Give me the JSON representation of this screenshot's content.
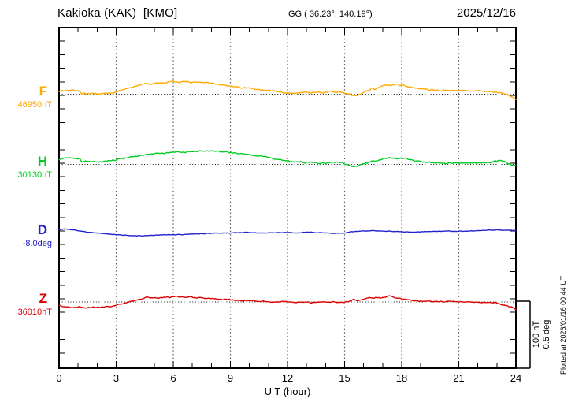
{
  "header": {
    "title": "Kakioka (KAK)  [KMO]",
    "coords": "GG ( 36.23°, 140.19°)",
    "date": "2025/12/16"
  },
  "footer": {
    "xlabel": "U T (hour)",
    "plotted_at": "Plotted at 2026/01/16 00:44 UT"
  },
  "scale_bar": {
    "line1": "100 nT",
    "line2": "0.5 deg"
  },
  "chart_data": {
    "type": "line",
    "title": "Kakioka (KAK) [KMO]",
    "subtitle": "GG ( 36.23°, 140.19°)",
    "date": "2025/12/16",
    "xlabel": "U T (hour)",
    "x_range": [
      0,
      24
    ],
    "x_ticks": [
      0,
      3,
      6,
      9,
      12,
      15,
      18,
      21,
      24
    ],
    "grid": "dotted vertical lines every 3 h; dotted horizontal baseline per channel",
    "scale": {
      "nT_per_division": 100,
      "deg_per_division": 0.5
    },
    "series": [
      {
        "name": "F",
        "unit": "nT",
        "baseline_value": 46950,
        "baseline_label": "46950nT",
        "color": "#FFAA00",
        "noise_amp": 1.3,
        "points": [
          [
            0,
            4.5
          ],
          [
            0.2,
            5
          ],
          [
            0.4,
            6
          ],
          [
            0.55,
            5
          ],
          [
            0.7,
            6
          ],
          [
            0.85,
            5
          ],
          [
            1.0,
            5
          ],
          [
            1.1,
            4
          ],
          [
            1.2,
            0
          ],
          [
            1.3,
            2
          ],
          [
            1.5,
            1
          ],
          [
            1.8,
            1
          ],
          [
            2.1,
            0.5
          ],
          [
            2.4,
            1
          ],
          [
            2.7,
            1.5
          ],
          [
            3.0,
            3
          ],
          [
            3.3,
            6
          ],
          [
            3.6,
            9
          ],
          [
            3.9,
            11
          ],
          [
            4.2,
            13
          ],
          [
            4.5,
            16
          ],
          [
            4.8,
            15
          ],
          [
            5.1,
            17
          ],
          [
            5.4,
            16
          ],
          [
            5.7,
            18
          ],
          [
            6.0,
            19
          ],
          [
            6.3,
            18
          ],
          [
            6.6,
            19
          ],
          [
            6.9,
            17
          ],
          [
            7.2,
            18
          ],
          [
            7.5,
            17
          ],
          [
            7.8,
            17
          ],
          [
            8.1,
            16
          ],
          [
            8.4,
            14
          ],
          [
            8.7,
            13
          ],
          [
            9.0,
            12
          ],
          [
            9.3,
            11
          ],
          [
            9.6,
            10
          ],
          [
            10.0,
            9
          ],
          [
            10.4,
            7
          ],
          [
            10.8,
            6
          ],
          [
            11.2,
            5
          ],
          [
            11.6,
            3
          ],
          [
            12.0,
            2
          ],
          [
            12.3,
            1
          ],
          [
            12.6,
            2
          ],
          [
            12.9,
            3
          ],
          [
            13.2,
            2
          ],
          [
            13.5,
            3
          ],
          [
            13.8,
            2
          ],
          [
            14.1,
            4
          ],
          [
            14.3,
            5
          ],
          [
            14.5,
            2
          ],
          [
            14.7,
            4
          ],
          [
            14.9,
            2
          ],
          [
            15.1,
            1
          ],
          [
            15.3,
            -1
          ],
          [
            15.5,
            -2
          ],
          [
            15.7,
            -1
          ],
          [
            15.9,
            1
          ],
          [
            16.1,
            4
          ],
          [
            16.3,
            6
          ],
          [
            16.45,
            9
          ],
          [
            16.6,
            7
          ],
          [
            16.8,
            10
          ],
          [
            17.0,
            12
          ],
          [
            17.2,
            14
          ],
          [
            17.35,
            12
          ],
          [
            17.5,
            14
          ],
          [
            17.7,
            15
          ],
          [
            17.9,
            13
          ],
          [
            18.1,
            13
          ],
          [
            18.4,
            11
          ],
          [
            18.7,
            9
          ],
          [
            19.0,
            8
          ],
          [
            19.4,
            7
          ],
          [
            19.8,
            6
          ],
          [
            20.2,
            5
          ],
          [
            20.6,
            6
          ],
          [
            21.0,
            6
          ],
          [
            21.4,
            5
          ],
          [
            21.8,
            5
          ],
          [
            22.2,
            5
          ],
          [
            22.6,
            4
          ],
          [
            23.0,
            3
          ],
          [
            23.3,
            2
          ],
          [
            23.5,
            0
          ],
          [
            23.7,
            -3
          ],
          [
            23.85,
            -5
          ],
          [
            24,
            -7
          ]
        ]
      },
      {
        "name": "H",
        "unit": "nT",
        "baseline_value": 30130,
        "baseline_label": "30130nT",
        "color": "#00CC22",
        "noise_amp": 1.3,
        "points": [
          [
            0,
            7
          ],
          [
            0.2,
            8
          ],
          [
            0.4,
            9
          ],
          [
            0.6,
            10
          ],
          [
            0.8,
            9
          ],
          [
            1.0,
            8
          ],
          [
            1.1,
            9
          ],
          [
            1.2,
            4
          ],
          [
            1.4,
            5
          ],
          [
            1.7,
            4
          ],
          [
            2.0,
            4
          ],
          [
            2.3,
            4
          ],
          [
            2.6,
            5
          ],
          [
            2.9,
            6
          ],
          [
            3.2,
            8
          ],
          [
            3.5,
            9
          ],
          [
            3.8,
            11
          ],
          [
            4.1,
            12
          ],
          [
            4.4,
            14
          ],
          [
            4.7,
            15
          ],
          [
            5.0,
            16
          ],
          [
            5.3,
            16
          ],
          [
            5.6,
            17
          ],
          [
            5.9,
            18
          ],
          [
            6.2,
            19
          ],
          [
            6.5,
            18
          ],
          [
            6.8,
            19
          ],
          [
            7.1,
            19
          ],
          [
            7.4,
            20
          ],
          [
            7.7,
            19
          ],
          [
            8.0,
            20
          ],
          [
            8.3,
            19
          ],
          [
            8.6,
            19
          ],
          [
            8.9,
            18
          ],
          [
            9.2,
            17
          ],
          [
            9.5,
            16
          ],
          [
            9.8,
            15
          ],
          [
            10.1,
            14
          ],
          [
            10.4,
            13
          ],
          [
            10.7,
            12
          ],
          [
            11.0,
            10
          ],
          [
            11.3,
            8
          ],
          [
            11.6,
            7
          ],
          [
            12.0,
            5
          ],
          [
            12.4,
            4
          ],
          [
            12.8,
            3
          ],
          [
            13.2,
            3
          ],
          [
            13.6,
            2
          ],
          [
            14.0,
            2
          ],
          [
            14.4,
            3
          ],
          [
            14.8,
            2
          ],
          [
            15.1,
            0
          ],
          [
            15.3,
            -2
          ],
          [
            15.5,
            -3
          ],
          [
            15.7,
            -2
          ],
          [
            16.0,
            1
          ],
          [
            16.3,
            3
          ],
          [
            16.5,
            6
          ],
          [
            16.7,
            5
          ],
          [
            17.0,
            8
          ],
          [
            17.3,
            10
          ],
          [
            17.5,
            9
          ],
          [
            17.8,
            8
          ],
          [
            18.0,
            10
          ],
          [
            18.3,
            8
          ],
          [
            18.6,
            6
          ],
          [
            19.0,
            4
          ],
          [
            19.4,
            3
          ],
          [
            19.8,
            2
          ],
          [
            20.2,
            2
          ],
          [
            20.6,
            2
          ],
          [
            21.0,
            2
          ],
          [
            21.4,
            2
          ],
          [
            21.8,
            2
          ],
          [
            22.2,
            2
          ],
          [
            22.6,
            3
          ],
          [
            23.0,
            5
          ],
          [
            23.2,
            6
          ],
          [
            23.4,
            4
          ],
          [
            23.6,
            1
          ],
          [
            23.8,
            0
          ],
          [
            24,
            -1.5
          ]
        ]
      },
      {
        "name": "D",
        "unit": "deg",
        "baseline_value": -8.0,
        "baseline_label": "-8.0deg",
        "color": "#2222CC",
        "noise_amp": 0.003,
        "points": [
          [
            0,
            0.023
          ],
          [
            0.3,
            0.029
          ],
          [
            0.6,
            0.026
          ],
          [
            1.0,
            0.017
          ],
          [
            1.5,
            0.006
          ],
          [
            2.0,
            0.0
          ],
          [
            2.5,
            -0.006
          ],
          [
            3.0,
            -0.012
          ],
          [
            3.5,
            -0.017
          ],
          [
            4.0,
            -0.02
          ],
          [
            4.5,
            -0.02
          ],
          [
            5.0,
            -0.017
          ],
          [
            5.5,
            -0.014
          ],
          [
            6.0,
            -0.012
          ],
          [
            6.5,
            -0.012
          ],
          [
            7.0,
            -0.009
          ],
          [
            7.5,
            -0.006
          ],
          [
            8.0,
            -0.003
          ],
          [
            8.5,
            0.0
          ],
          [
            9.0,
            0.0
          ],
          [
            9.5,
            0.003
          ],
          [
            10.0,
            0.003
          ],
          [
            10.5,
            0.0
          ],
          [
            11.0,
            0.0
          ],
          [
            11.5,
            0.003
          ],
          [
            12.0,
            0.003
          ],
          [
            12.5,
            0.0
          ],
          [
            13.0,
            0.006
          ],
          [
            13.5,
            0.003
          ],
          [
            14.0,
            0.0
          ],
          [
            14.5,
            -0.003
          ],
          [
            15.0,
            0.0
          ],
          [
            15.5,
            0.012
          ],
          [
            16.0,
            0.014
          ],
          [
            16.5,
            0.017
          ],
          [
            17.0,
            0.014
          ],
          [
            17.5,
            0.012
          ],
          [
            18.0,
            0.009
          ],
          [
            18.5,
            0.006
          ],
          [
            19.0,
            0.009
          ],
          [
            19.5,
            0.012
          ],
          [
            20.0,
            0.012
          ],
          [
            20.5,
            0.014
          ],
          [
            21.0,
            0.012
          ],
          [
            21.5,
            0.014
          ],
          [
            22.0,
            0.017
          ],
          [
            22.5,
            0.02
          ],
          [
            23.0,
            0.023
          ],
          [
            23.5,
            0.02
          ],
          [
            24,
            0.017
          ]
        ]
      },
      {
        "name": "Z",
        "unit": "nT",
        "baseline_value": 36010,
        "baseline_label": "36010nT",
        "color": "#DD0000",
        "noise_amp": 1.1,
        "points": [
          [
            0,
            -5
          ],
          [
            0.3,
            -7
          ],
          [
            0.6,
            -8
          ],
          [
            0.9,
            -9
          ],
          [
            1.1,
            -7
          ],
          [
            1.3,
            -9
          ],
          [
            1.6,
            -8
          ],
          [
            1.9,
            -8
          ],
          [
            2.2,
            -8
          ],
          [
            2.5,
            -7
          ],
          [
            2.8,
            -6
          ],
          [
            3.1,
            -4
          ],
          [
            3.4,
            -2
          ],
          [
            3.7,
            0
          ],
          [
            4.0,
            2
          ],
          [
            4.3,
            4
          ],
          [
            4.6,
            7
          ],
          [
            4.9,
            6
          ],
          [
            5.2,
            6
          ],
          [
            5.5,
            7
          ],
          [
            5.8,
            7
          ],
          [
            6.1,
            8
          ],
          [
            6.4,
            7
          ],
          [
            6.7,
            7
          ],
          [
            7.0,
            7
          ],
          [
            7.3,
            6
          ],
          [
            7.6,
            6
          ],
          [
            7.9,
            5
          ],
          [
            8.2,
            5
          ],
          [
            8.5,
            4
          ],
          [
            8.8,
            4
          ],
          [
            9.1,
            3
          ],
          [
            9.4,
            2
          ],
          [
            9.7,
            2
          ],
          [
            10.0,
            2
          ],
          [
            10.4,
            1
          ],
          [
            10.8,
            1
          ],
          [
            11.2,
            0
          ],
          [
            11.6,
            0
          ],
          [
            12.0,
            0
          ],
          [
            12.4,
            -1
          ],
          [
            12.8,
            0
          ],
          [
            13.2,
            -1
          ],
          [
            13.6,
            0
          ],
          [
            14.0,
            0
          ],
          [
            14.4,
            0
          ],
          [
            14.8,
            -1
          ],
          [
            15.1,
            0
          ],
          [
            15.3,
            2
          ],
          [
            15.5,
            4
          ],
          [
            15.7,
            2
          ],
          [
            15.9,
            3
          ],
          [
            16.1,
            5
          ],
          [
            16.3,
            7
          ],
          [
            16.5,
            5
          ],
          [
            16.7,
            7
          ],
          [
            16.9,
            6
          ],
          [
            17.1,
            7
          ],
          [
            17.3,
            9
          ],
          [
            17.5,
            8
          ],
          [
            17.7,
            6
          ],
          [
            17.9,
            5
          ],
          [
            18.1,
            4
          ],
          [
            18.4,
            3
          ],
          [
            18.7,
            2
          ],
          [
            19.0,
            1
          ],
          [
            19.4,
            1
          ],
          [
            19.8,
            1
          ],
          [
            20.2,
            0
          ],
          [
            20.6,
            1
          ],
          [
            21.0,
            0
          ],
          [
            21.4,
            0
          ],
          [
            21.8,
            0
          ],
          [
            22.2,
            -1
          ],
          [
            22.6,
            -1
          ],
          [
            23.0,
            -2
          ],
          [
            23.3,
            -4
          ],
          [
            23.6,
            -6
          ],
          [
            23.8,
            -8
          ],
          [
            24,
            -11
          ]
        ]
      }
    ]
  }
}
